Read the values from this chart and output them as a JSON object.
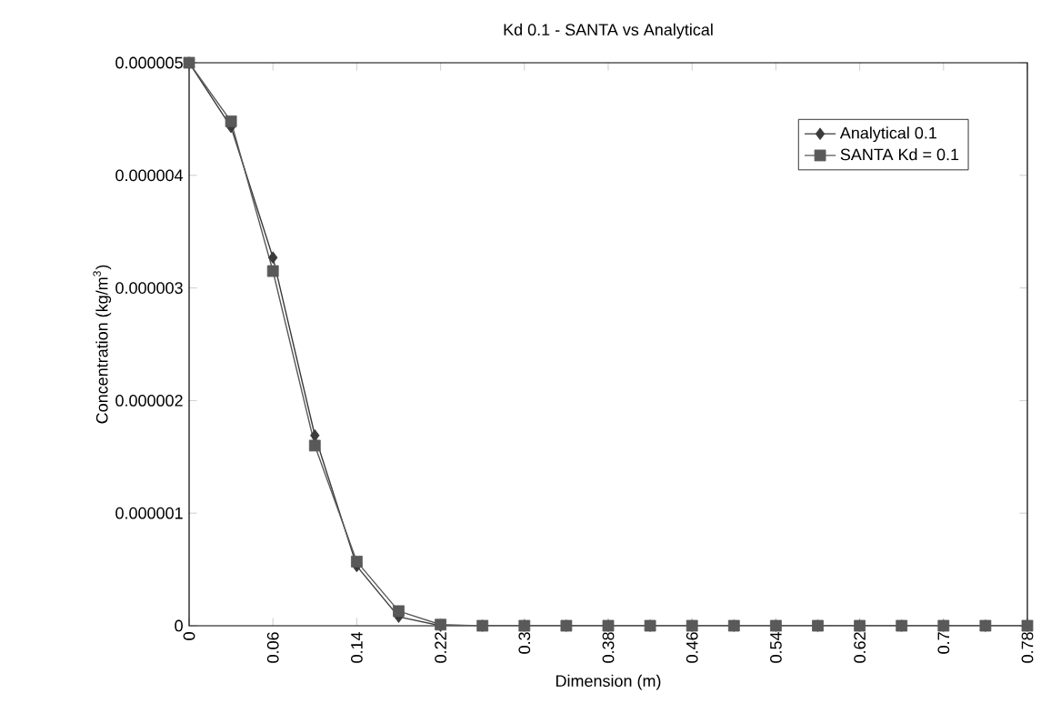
{
  "chart_data": {
    "type": "line",
    "title": "Kd 0.1 - SANTA vs Analytical",
    "xlabel": "Dimension (m)",
    "ylabel": "Concentration (kg/m$^{3}$)",
    "categories": [
      "0",
      null,
      "0.06",
      null,
      "0.14",
      null,
      "0.22",
      null,
      "0.3",
      null,
      "0.38",
      null,
      "0.46",
      null,
      "0.54",
      null,
      "0.62",
      null,
      "0.7",
      null,
      "0.78"
    ],
    "series": [
      {
        "name": "Analytical 0.1",
        "color": "#3a3a3a",
        "marker": "diamond",
        "values": [
          5e-06,
          4.43e-06,
          3.27e-06,
          1.69e-06,
          5.3e-07,
          8e-08,
          0.0,
          0.0,
          0.0,
          0.0,
          0.0,
          0.0,
          0.0,
          0.0,
          0.0,
          0.0,
          0.0,
          0.0,
          0.0,
          0.0,
          0.0
        ]
      },
      {
        "name": "SANTA Kd = 0.1",
        "color": "#595959",
        "marker": "square",
        "values": [
          5e-06,
          4.48e-06,
          3.15e-06,
          1.6e-06,
          5.7e-07,
          1.3e-07,
          1e-08,
          0.0,
          0.0,
          0.0,
          0.0,
          0.0,
          0.0,
          0.0,
          0.0,
          0.0,
          0.0,
          0.0,
          0.0,
          0.0,
          0.0
        ]
      }
    ],
    "ylim": [
      0,
      5e-06
    ],
    "yticks": [
      {
        "value": 0,
        "label": "0"
      },
      {
        "value": 1e-06,
        "label": "0.000001"
      },
      {
        "value": 2e-06,
        "label": "0.000002"
      },
      {
        "value": 3e-06,
        "label": "0.000003"
      },
      {
        "value": 4e-06,
        "label": "0.000004"
      },
      {
        "value": 5e-06,
        "label": "0.000005"
      }
    ],
    "legend": "top right",
    "grid": false,
    "line_style": "solid"
  }
}
